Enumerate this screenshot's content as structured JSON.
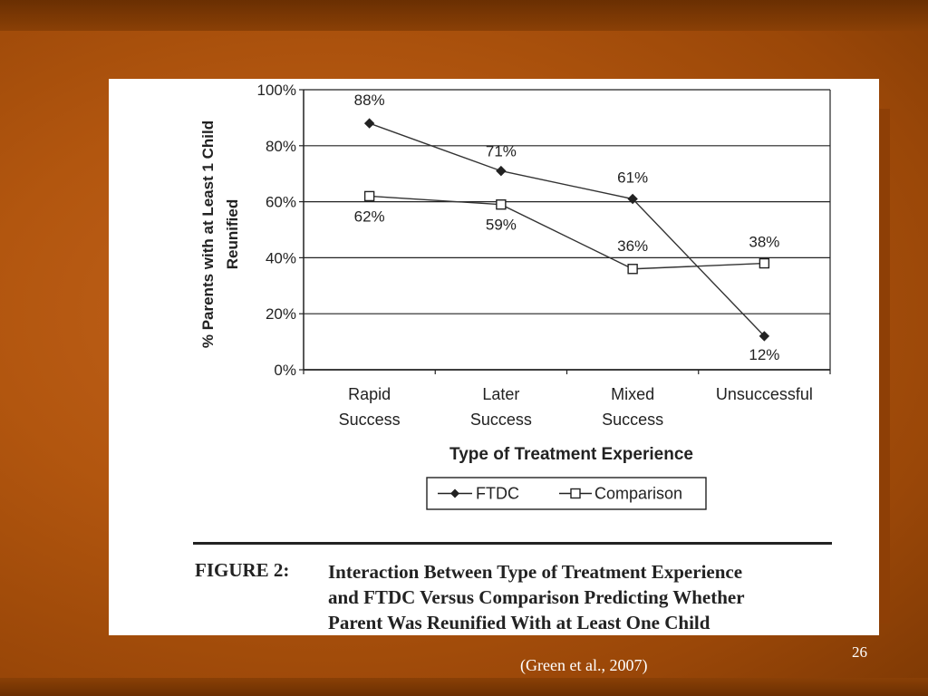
{
  "slide": {
    "number": "26",
    "citation": "(Green et al., 2007)"
  },
  "figure": {
    "label": "FIGURE 2:",
    "caption_lines": [
      "Interaction Between Type of Treatment Experience",
      "and FTDC Versus Comparison Predicting Whether",
      "Parent Was Reunified With at Least One Child"
    ]
  },
  "chart_data": {
    "type": "line",
    "title": "",
    "xlabel": "Type of Treatment Experience",
    "ylabel_lines": [
      "% Parents with at Least 1 Child",
      "Reunified"
    ],
    "categories": [
      [
        "Rapid",
        "Success"
      ],
      [
        "Later",
        "Success"
      ],
      [
        "Mixed",
        "Success"
      ],
      [
        "Unsuccessful"
      ]
    ],
    "ylim": [
      0,
      100
    ],
    "yticks": [
      0,
      20,
      40,
      60,
      80,
      100
    ],
    "ytick_labels": [
      "0%",
      "20%",
      "40%",
      "60%",
      "80%",
      "100%"
    ],
    "grid": true,
    "legend_position": "bottom",
    "series": [
      {
        "name": "FTDC",
        "marker": "filled-diamond",
        "values": [
          88,
          71,
          61,
          12
        ],
        "labels": [
          "88%",
          "71%",
          "61%",
          "12%"
        ]
      },
      {
        "name": "Comparison",
        "marker": "open-square",
        "values": [
          62,
          59,
          36,
          38
        ],
        "labels": [
          "62%",
          "59%",
          "36%",
          "38%"
        ]
      }
    ]
  }
}
